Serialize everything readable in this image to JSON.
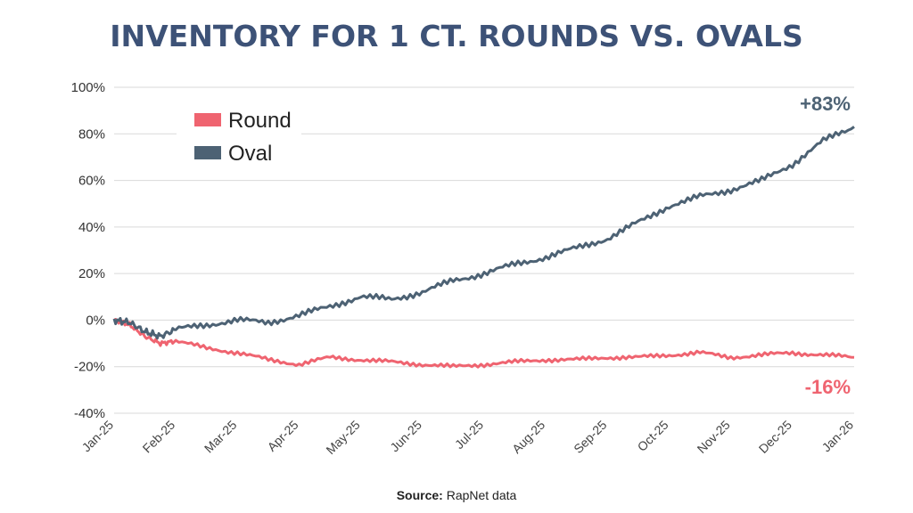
{
  "title": "INVENTORY FOR 1 CT. ROUNDS VS. OVALS",
  "source": {
    "label": "Source:",
    "text": "RapNet data"
  },
  "colors": {
    "round": "#ef6470",
    "oval": "#4d6274",
    "title": "#3d5277",
    "grid": "#d9d9d9"
  },
  "chart_data": {
    "type": "line",
    "title": "INVENTORY FOR 1 CT. ROUNDS VS. OVALS",
    "xlabel": "",
    "ylabel": "",
    "categories": [
      "Jan-25",
      "Feb-25",
      "Mar-25",
      "Apr-25",
      "May-25",
      "Jun-25",
      "Jul-25",
      "Aug-25",
      "Sep-25",
      "Oct-25",
      "Nov-25",
      "Dec-25",
      "Jan-26"
    ],
    "yticks": [
      "100%",
      "80%",
      "60%",
      "40%",
      "20%",
      "0%",
      "-20%",
      "-40%"
    ],
    "ytick_values": [
      100,
      80,
      60,
      40,
      20,
      0,
      -20,
      -40
    ],
    "ylim": [
      -40,
      100
    ],
    "grid": "horizontal",
    "legend_position": "top-left",
    "series": [
      {
        "name": "Round",
        "x": [
          0,
          0.25,
          0.5,
          0.75,
          1,
          1.5,
          2,
          2.5,
          3,
          3.5,
          4,
          4.5,
          5,
          5.5,
          6,
          6.5,
          7,
          7.5,
          8,
          8.5,
          9,
          9.5,
          10,
          10.5,
          11,
          11.5,
          12
        ],
        "y": [
          0,
          -2,
          -7,
          -10,
          -9,
          -12,
          -14,
          -17,
          -19,
          -16,
          -17,
          -18,
          -19,
          -20,
          -19,
          -18,
          -17,
          -17,
          -16,
          -16,
          -15,
          -14,
          -16,
          -15,
          -14,
          -15,
          -16
        ]
      },
      {
        "name": "Oval",
        "x": [
          0,
          0.25,
          0.5,
          0.75,
          1,
          1.5,
          2,
          2.5,
          3,
          3.5,
          4,
          4.5,
          5,
          5.5,
          6,
          6.5,
          7,
          7.5,
          8,
          8.5,
          9,
          9.5,
          10,
          10.5,
          11,
          11.5,
          12
        ],
        "y": [
          0,
          -1,
          -5,
          -7,
          -4,
          -2,
          0,
          -1,
          2,
          6,
          10,
          9,
          12,
          17,
          20,
          24,
          27,
          31,
          35,
          42,
          49,
          53,
          56,
          60,
          67,
          77,
          83
        ]
      }
    ],
    "end_labels": [
      {
        "series": "Oval",
        "text": "+83%"
      },
      {
        "series": "Round",
        "text": "-16%"
      }
    ]
  }
}
